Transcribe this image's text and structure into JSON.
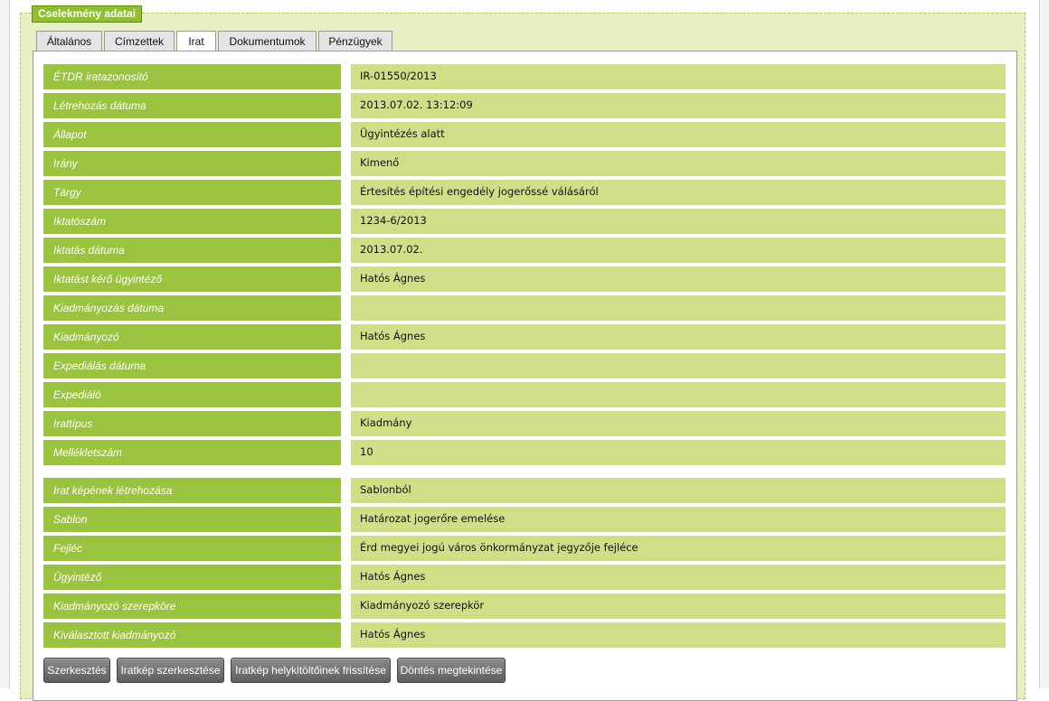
{
  "fieldset_title": "Cselekmény adatai",
  "tabs": [
    {
      "label": "Általános"
    },
    {
      "label": "Címzettek"
    },
    {
      "label": "Irat"
    },
    {
      "label": "Dokumentumok"
    },
    {
      "label": "Pénzügyek"
    }
  ],
  "active_tab": "Irat",
  "fields": [
    {
      "label": "ÉTDR iratazonosító",
      "value": "IR-01550/2013"
    },
    {
      "label": "Létrehozás dátuma",
      "value": "2013.07.02. 13:12:09"
    },
    {
      "label": "Állapot",
      "value": "Ügyintézés alatt"
    },
    {
      "label": "Irány",
      "value": "Kimenő"
    },
    {
      "label": "Tárgy",
      "value": "Értesítés építési engedély jogerőssé válásáról"
    },
    {
      "label": "Iktatószám",
      "value": "1234-6/2013"
    },
    {
      "label": "Iktatás dátuma",
      "value": "2013.07.02."
    },
    {
      "label": "Iktatást kérő ügyintéző",
      "value": "Hatós Ágnes"
    },
    {
      "label": "Kiadmányozás dátuma",
      "value": ""
    },
    {
      "label": "Kiadmányozó",
      "value": "Hatós Ágnes"
    },
    {
      "label": "Expediálás dátuma",
      "value": ""
    },
    {
      "label": "Expediáló",
      "value": ""
    },
    {
      "label": "Irattípus",
      "value": "Kiadmány"
    },
    {
      "label": "Mellékletszám",
      "value": "10"
    }
  ],
  "fields2": [
    {
      "label": "Irat képének létrehozása",
      "value": "Sablonból"
    },
    {
      "label": "Sablon",
      "value": "Határozat jogerőre emelése"
    },
    {
      "label": "Fejléc",
      "value": "Érd megyei jogú város önkormányzat jegyzője fejléce"
    },
    {
      "label": "Ügyintéző",
      "value": "Hatós Ágnes"
    },
    {
      "label": "Kiadmányozó szerepköre",
      "value": "Kiadmányozó szerepkör"
    },
    {
      "label": "Kiválasztott kiadmányozó",
      "value": "Hatós Ágnes"
    }
  ],
  "buttons": {
    "edit": "Szerkesztés",
    "edit_image": "Iratkép szerkesztése",
    "refresh_placeholders": "Iratkép helykitöltőinek frissítése",
    "view_decision": "Döntés megtekintése"
  }
}
